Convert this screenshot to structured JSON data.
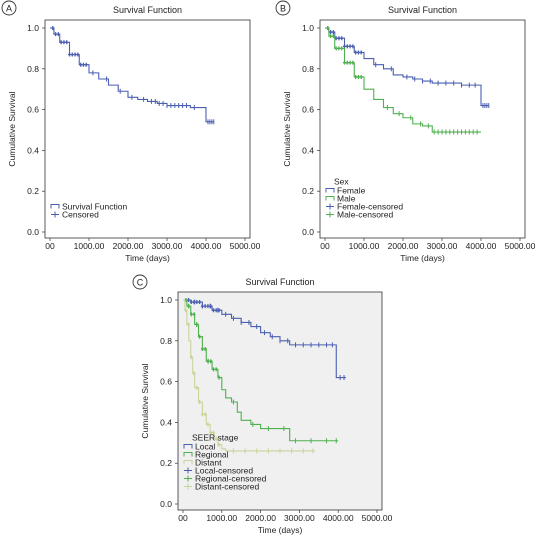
{
  "chart_data": [
    {
      "panel_label": "A",
      "type": "line",
      "title": "Survival Function",
      "xlabel": "Time (days)",
      "ylabel": "Cumulative Survival",
      "xlim": [
        0,
        5000
      ],
      "ylim": [
        0,
        1.0
      ],
      "xticks": [
        "00",
        "1000.00",
        "2000.00",
        "3000.00",
        "4000.00",
        "5000.00"
      ],
      "yticks": [
        "0.0",
        "0.2",
        "0.4",
        "0.6",
        "0.8",
        "1.0"
      ],
      "legend_title": "",
      "legend_position": "bottom-left",
      "legend": [
        "Survival Function",
        "Censored"
      ],
      "background": "#ffffff",
      "series": [
        {
          "label": "Survival Function",
          "color": "#4a5fb0",
          "censor_color": "#4a5fb0",
          "x": [
            0,
            100,
            250,
            500,
            750,
            1000,
            1250,
            1500,
            1750,
            2000,
            2250,
            2500,
            2750,
            3000,
            3300,
            3600,
            3900,
            4000,
            4200
          ],
          "y": [
            1.0,
            0.97,
            0.93,
            0.87,
            0.82,
            0.78,
            0.75,
            0.72,
            0.69,
            0.66,
            0.65,
            0.64,
            0.63,
            0.62,
            0.62,
            0.61,
            0.61,
            0.54,
            0.54
          ],
          "censored_x": [
            1100,
            1450,
            1800,
            2100,
            2400,
            2600,
            2700,
            2800,
            2900,
            3000,
            3100,
            3200,
            3300,
            3400,
            3500,
            3700,
            4050,
            4100,
            4150,
            4200
          ]
        }
      ]
    },
    {
      "panel_label": "B",
      "type": "line",
      "title": "Survival Function",
      "xlabel": "Time (days)",
      "ylabel": "Cumulative Survival",
      "xlim": [
        0,
        5000
      ],
      "ylim": [
        0,
        1.0
      ],
      "xticks": [
        "00",
        "1000.00",
        "2000.00",
        "3000.00",
        "4000.00",
        "5000.00"
      ],
      "yticks": [
        "0.0",
        "0.2",
        "0.4",
        "0.6",
        "0.8",
        "1.0"
      ],
      "legend_title": "Sex",
      "legend_position": "bottom-left",
      "legend": [
        "Female",
        "Male",
        "Female-censored",
        "Male-censored"
      ],
      "background": "#ffffff",
      "series": [
        {
          "label": "Female",
          "color": "#4a5fb0",
          "censor_color": "#4a5fb0",
          "x": [
            0,
            100,
            250,
            500,
            750,
            1000,
            1250,
            1500,
            1750,
            2000,
            2250,
            2500,
            2750,
            3000,
            3500,
            3900,
            4000,
            4200
          ],
          "y": [
            1.0,
            0.98,
            0.95,
            0.91,
            0.88,
            0.85,
            0.82,
            0.8,
            0.77,
            0.76,
            0.75,
            0.74,
            0.73,
            0.73,
            0.72,
            0.72,
            0.62,
            0.62
          ],
          "censored_x": [
            1300,
            1700,
            2100,
            2300,
            2500,
            2700,
            2900,
            3100,
            3300,
            3500,
            3700,
            3850,
            4050,
            4100,
            4150,
            4200
          ]
        },
        {
          "label": "Male",
          "color": "#4fb04f",
          "censor_color": "#4fb04f",
          "x": [
            0,
            100,
            250,
            500,
            750,
            1000,
            1250,
            1500,
            1750,
            2000,
            2250,
            2500,
            2750,
            3000,
            3500,
            4000
          ],
          "y": [
            1.0,
            0.96,
            0.9,
            0.83,
            0.76,
            0.7,
            0.65,
            0.61,
            0.58,
            0.56,
            0.53,
            0.52,
            0.49,
            0.49,
            0.49,
            0.49
          ],
          "censored_x": [
            1600,
            1900,
            2200,
            2450,
            2650,
            2800,
            2900,
            3000,
            3100,
            3200,
            3300,
            3400,
            3500,
            3600,
            3700,
            3800,
            3900
          ]
        }
      ]
    },
    {
      "panel_label": "C",
      "type": "line",
      "title": "Survival Function",
      "xlabel": "Time (days)",
      "ylabel": "Cumulative Survival",
      "xlim": [
        0,
        5000
      ],
      "ylim": [
        0,
        1.0
      ],
      "xticks": [
        "00",
        "1000.00",
        "2000.00",
        "3000.00",
        "4000.00",
        "5000.00"
      ],
      "yticks": [
        "0.0",
        "0.2",
        "0.4",
        "0.6",
        "0.8",
        "1.0"
      ],
      "legend_title": "SEER stage",
      "legend_position": "bottom-left",
      "legend": [
        "Local",
        "Regional",
        "Distant",
        "Local-censored",
        "Regional-censored",
        "Distant-censored"
      ],
      "background": "#f0f0f0",
      "series": [
        {
          "label": "Local",
          "color": "#4a5fb0",
          "censor_color": "#4a5fb0",
          "x": [
            0,
            200,
            500,
            750,
            1000,
            1250,
            1500,
            1750,
            2000,
            2250,
            2500,
            2750,
            3000,
            3500,
            3900,
            3950,
            4200
          ],
          "y": [
            1.0,
            0.99,
            0.97,
            0.95,
            0.93,
            0.91,
            0.89,
            0.87,
            0.84,
            0.82,
            0.8,
            0.78,
            0.78,
            0.78,
            0.78,
            0.62,
            0.62
          ],
          "censored_x": [
            300,
            500,
            700,
            900,
            1100,
            1300,
            1500,
            1700,
            1900,
            2100,
            2300,
            2500,
            2700,
            2900,
            3100,
            3300,
            3500,
            3700,
            3850,
            4050,
            4150
          ]
        },
        {
          "label": "Regional",
          "color": "#4fb04f",
          "censor_color": "#4fb04f",
          "x": [
            0,
            100,
            200,
            300,
            400,
            500,
            600,
            750,
            900,
            1000,
            1100,
            1250,
            1400,
            1500,
            1750,
            2000,
            2500,
            2750,
            3000,
            4000
          ],
          "y": [
            1.0,
            0.97,
            0.93,
            0.88,
            0.82,
            0.76,
            0.7,
            0.66,
            0.62,
            0.56,
            0.52,
            0.5,
            0.45,
            0.41,
            0.39,
            0.37,
            0.37,
            0.31,
            0.31,
            0.31
          ],
          "censored_x": [
            150,
            350,
            650,
            1300,
            1800,
            2200,
            2600,
            2900,
            3300,
            3700,
            3950
          ]
        },
        {
          "label": "Distant",
          "color": "#c9d49a",
          "censor_color": "#c9d49a",
          "x": [
            0,
            50,
            100,
            150,
            200,
            250,
            300,
            400,
            500,
            600,
            700,
            800,
            900,
            1000,
            1100,
            1200,
            3400
          ],
          "y": [
            1.0,
            0.95,
            0.88,
            0.8,
            0.72,
            0.64,
            0.57,
            0.5,
            0.44,
            0.39,
            0.35,
            0.32,
            0.29,
            0.27,
            0.26,
            0.26,
            0.26
          ],
          "censored_x": [
            1300,
            1600,
            1900,
            2200,
            2500,
            2800,
            3100,
            3350
          ]
        }
      ]
    }
  ]
}
